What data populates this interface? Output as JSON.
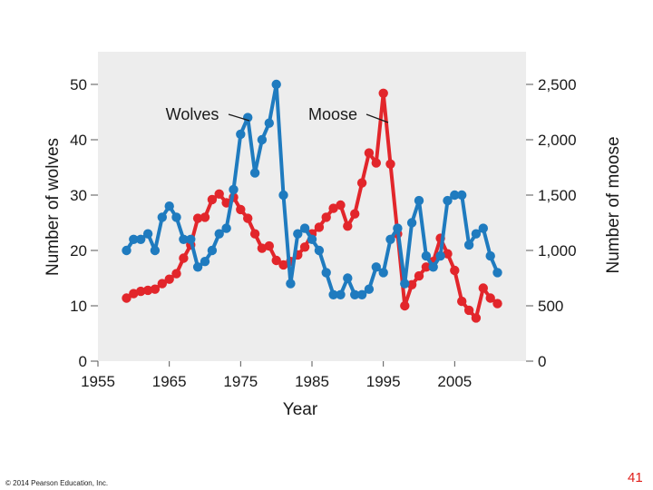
{
  "chart_data": {
    "type": "line",
    "title": "",
    "xlabel": "Year",
    "ylabel_left": "Number of wolves",
    "ylabel_right": "Number of moose",
    "xlim": [
      1955,
      2015
    ],
    "ylim_left": [
      0,
      50
    ],
    "ylim_right": [
      0,
      2500
    ],
    "x_ticks": [
      "1955",
      "1965",
      "1975",
      "1985",
      "1995",
      "2005"
    ],
    "y_ticks_left": [
      "0",
      "10",
      "20",
      "30",
      "40",
      "50"
    ],
    "y_ticks_right": [
      "0",
      "500",
      "1,000",
      "1,500",
      "2,000",
      "2,500"
    ],
    "background": "#ededed",
    "series": [
      {
        "name": "Wolves",
        "axis": "left",
        "color": "#1f7bbf",
        "x": [
          1959,
          1960,
          1961,
          1962,
          1963,
          1964,
          1965,
          1966,
          1967,
          1968,
          1969,
          1970,
          1971,
          1972,
          1973,
          1974,
          1975,
          1976,
          1977,
          1978,
          1979,
          1980,
          1981,
          1982,
          1983,
          1984,
          1985,
          1986,
          1987,
          1988,
          1989,
          1990,
          1991,
          1992,
          1993,
          1994,
          1995,
          1996,
          1997,
          1998,
          1999,
          2000,
          2001,
          2002,
          2003,
          2004,
          2005,
          2006,
          2007,
          2008,
          2009,
          2010,
          2011
        ],
        "values": [
          20,
          22,
          22,
          23,
          20,
          26,
          28,
          26,
          22,
          22,
          17,
          18,
          20,
          23,
          24,
          31,
          41,
          44,
          34,
          40,
          43,
          50,
          30,
          14,
          23,
          24,
          22,
          20,
          16,
          12,
          12,
          15,
          12,
          12,
          13,
          17,
          16,
          22,
          24,
          14,
          25,
          29,
          19,
          17,
          19,
          29,
          30,
          30,
          21,
          23,
          24,
          19,
          16
        ]
      },
      {
        "name": "Moose",
        "axis": "right",
        "color": "#e2262b",
        "x": [
          1959,
          1960,
          1961,
          1962,
          1963,
          1964,
          1965,
          1966,
          1967,
          1968,
          1969,
          1970,
          1971,
          1972,
          1973,
          1974,
          1975,
          1976,
          1977,
          1978,
          1979,
          1980,
          1981,
          1982,
          1983,
          1984,
          1985,
          1986,
          1987,
          1988,
          1989,
          1990,
          1991,
          1992,
          1993,
          1994,
          1995,
          1996,
          1997,
          1998,
          1999,
          2000,
          2001,
          2002,
          2003,
          2004,
          2005,
          2006,
          2007,
          2008,
          2009,
          2010,
          2011
        ],
        "values": [
          570,
          610,
          630,
          640,
          650,
          700,
          740,
          790,
          930,
          1050,
          1290,
          1300,
          1460,
          1510,
          1430,
          1480,
          1370,
          1290,
          1150,
          1020,
          1040,
          910,
          870,
          900,
          960,
          1030,
          1150,
          1210,
          1300,
          1380,
          1410,
          1220,
          1330,
          1610,
          1880,
          1790,
          2420,
          1780,
          1150,
          500,
          690,
          770,
          850,
          900,
          1110,
          970,
          820,
          540,
          460,
          390,
          660,
          570,
          520
        ]
      }
    ],
    "legend_labels": [
      {
        "text": "Wolves",
        "series": "Wolves"
      },
      {
        "text": "Moose",
        "series": "Moose"
      }
    ]
  },
  "footer": {
    "copyright": "© 2014 Pearson Education, Inc.",
    "page_number": "41"
  }
}
